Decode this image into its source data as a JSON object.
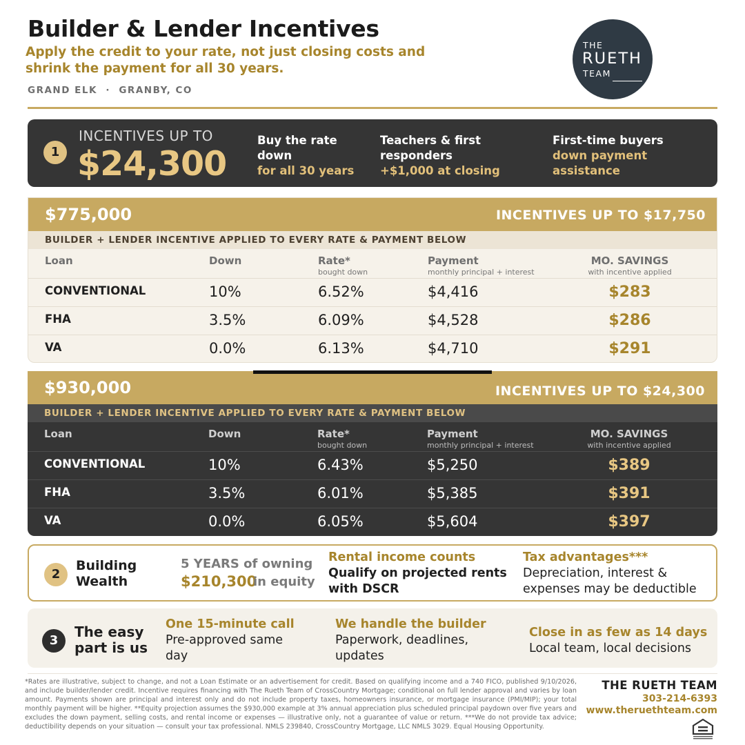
{
  "header": {
    "title": "Builder & Lender Incentives",
    "subtitle": "Apply the credit to your rate, not just closing costs and shrink the payment for all 30 years.",
    "location": "GRAND ELK  ·  GRANBY, CO"
  },
  "logo": {
    "line1": "THE",
    "line2": "RUETH",
    "line3": "TEAM"
  },
  "banner": {
    "number": "1",
    "label": "INCENTIVES UP TO",
    "amount": "$24,300",
    "features": [
      {
        "line1": "Buy the rate",
        "line2": "down",
        "accent": "for all 30 years"
      },
      {
        "line1": "Teachers & first",
        "line2": "responders",
        "accent": "+$1,000 at closing"
      },
      {
        "line1": "First-time buyers",
        "accent": "down payment",
        "accent2": "assistance"
      }
    ]
  },
  "table_775": {
    "price": "$775,000",
    "incentive": "INCENTIVES UP TO $17,750",
    "subheader": "BUILDER + LENDER INCENTIVE APPLIED TO EVERY RATE & PAYMENT BELOW",
    "columns": {
      "loan": "Loan",
      "down": "Down",
      "rate": "Rate*",
      "rate_note": "bought down",
      "payment": "Payment",
      "payment_note": "monthly principal + interest",
      "savings": "MO. SAVINGS",
      "savings_note": "with incentive applied"
    },
    "rows": [
      {
        "loan": "CONVENTIONAL",
        "down": "10%",
        "rate": "6.52%",
        "payment": "$4,416",
        "savings": "$283"
      },
      {
        "loan": "FHA",
        "down": "3.5%",
        "rate": "6.09%",
        "payment": "$4,528",
        "savings": "$286"
      },
      {
        "loan": "VA",
        "down": "0.0%",
        "rate": "6.13%",
        "payment": "$4,710",
        "savings": "$291"
      }
    ]
  },
  "table_930": {
    "price": "$930,000",
    "incentive": "INCENTIVES UP TO $24,300",
    "subheader": "BUILDER + LENDER INCENTIVE APPLIED TO EVERY RATE & PAYMENT BELOW",
    "columns": {
      "loan": "Loan",
      "down": "Down",
      "rate": "Rate*",
      "rate_note": "bought down",
      "payment": "Payment",
      "payment_note": "monthly principal + interest",
      "savings": "MO. SAVINGS",
      "savings_note": "with incentive applied"
    },
    "rows": [
      {
        "loan": "CONVENTIONAL",
        "down": "10%",
        "rate": "6.43%",
        "payment": "$5,250",
        "savings": "$389"
      },
      {
        "loan": "FHA",
        "down": "3.5%",
        "rate": "6.01%",
        "payment": "$5,385",
        "savings": "$391"
      },
      {
        "loan": "VA",
        "down": "0.0%",
        "rate": "6.05%",
        "payment": "$5,604",
        "savings": "$397"
      }
    ]
  },
  "wealth": {
    "number": "2",
    "title_line1": "Building",
    "title_line2": "Wealth",
    "years": "5 YEARS of owning",
    "equity": "$210,300",
    "equity_suffix": "in equity",
    "rental": {
      "heading": "Rental income counts",
      "line1": "Qualify on projected rents",
      "line2": "with DSCR"
    },
    "tax": {
      "heading": "Tax advantages***",
      "line1": "Depreciation, interest &",
      "line2": "expenses may be deductible"
    }
  },
  "easy": {
    "number": "3",
    "title_line1": "The easy",
    "title_line2": "part is us",
    "call": {
      "heading": "One 15-minute call",
      "line1": "Pre-approved same",
      "line2": "day"
    },
    "builder": {
      "heading": "We handle the builder",
      "line1": "Paperwork, deadlines,",
      "line2": "updates"
    },
    "close": {
      "heading": "Close in as few as 14 days",
      "line1": "Local team, local decisions"
    }
  },
  "footer": {
    "disclaimer": "*Rates are illustrative, subject to change, and not a Loan Estimate or an advertisement for credit. Based on qualifying income and a 740 FICO, published 9/10/2026, and include builder/lender credit. Incentive requires financing with The Rueth Team of CrossCountry Mortgage; conditional on full lender approval and varies by loan amount. Payments shown are principal and interest only and do not include property taxes, homeowners insurance, or mortgage insurance (PMI/MIP); your total monthly payment will be higher. **Equity projection assumes the $930,000 example at 3% annual appreciation plus scheduled principal paydown over five years and excludes the down payment, selling costs, and rental income or expenses — illustrative only, not a guarantee of value or return. ***We do not provide tax advice; deductibility depends on your situation — consult your tax professional. NMLS 239840, CrossCountry Mortgage, LLC NMLS 3029. Equal Housing Opportunity.",
    "team": "THE RUETH TEAM",
    "phone": "303-214-6393",
    "website": "www.theruethteam.com",
    "eho_icon": "equal-housing-opportunity-icon"
  }
}
